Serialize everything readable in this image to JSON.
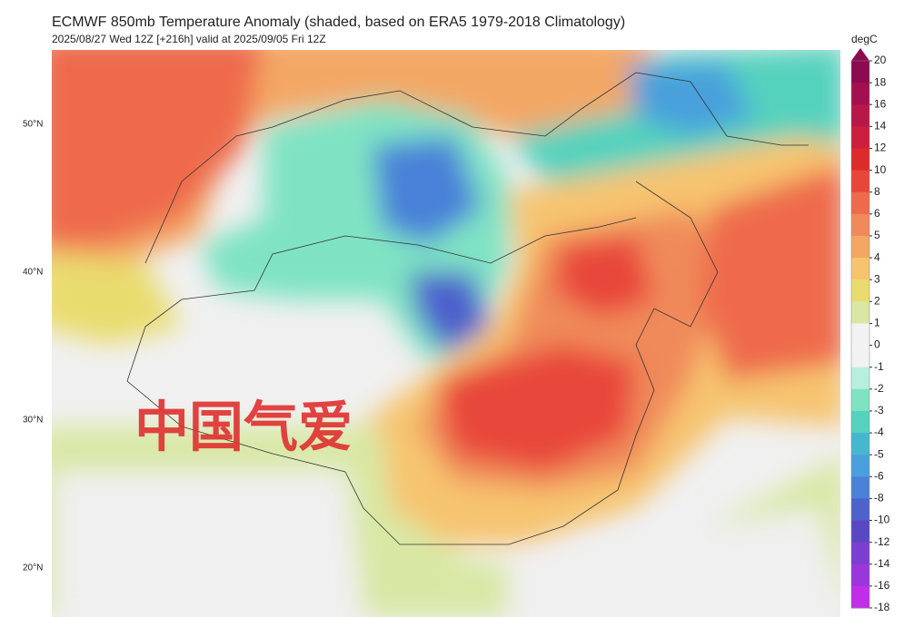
{
  "header": {
    "title": "ECMWF 850mb Temperature Anomaly (shaded, based on ERA5 1979-2018 Climatology)",
    "subtitle": "2025/08/27 Wed 12Z [+216h] valid at 2025/09/05 Fri 12Z"
  },
  "map": {
    "lat_labels": [
      "50°N",
      "40°N",
      "30°N",
      "20°N"
    ],
    "watermark": "中国气爱"
  },
  "colorbar": {
    "unit": "degC",
    "levels": [
      20,
      18,
      16,
      14,
      12,
      10,
      8,
      6,
      5,
      4,
      3,
      2,
      1,
      0,
      -1,
      -2,
      -3,
      -4,
      -5,
      -6,
      -8,
      -10,
      -12,
      -14,
      -16,
      -18
    ],
    "colors": [
      "#8b0a50",
      "#a3104f",
      "#b8174a",
      "#cc1f3f",
      "#dd2a2a",
      "#e8463a",
      "#ee6a4c",
      "#f08a5a",
      "#f3a765",
      "#f6c46f",
      "#e9dc6e",
      "#d8e8a4",
      "#f2f2f2",
      "#f2f2f2",
      "#b6efe0",
      "#7fe3c3",
      "#55d2bd",
      "#45b8cf",
      "#4aa0dc",
      "#4a82d8",
      "#4d62cc",
      "#5a47c4",
      "#7b3ed0",
      "#9b35dc",
      "#c02ee8"
    ]
  }
}
